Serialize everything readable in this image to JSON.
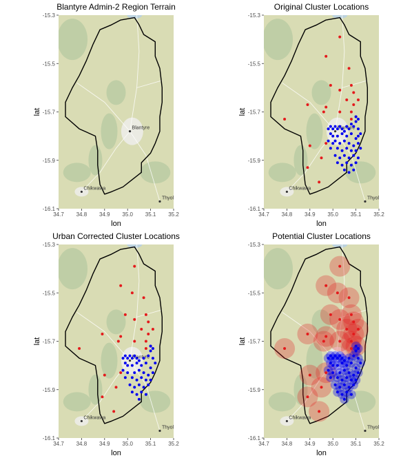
{
  "chart_data": [
    {
      "type": "scatter",
      "title": "Blantyre Admin-2 Region Terrain",
      "xlabel": "lon",
      "ylabel": "lat",
      "xlim": [
        34.7,
        35.2
      ],
      "ylim": [
        -16.1,
        -15.3
      ],
      "xticks": [
        "34.7",
        "34.8",
        "34.9",
        "35.0",
        "35.1",
        "35.2"
      ],
      "yticks": [
        "-15.3",
        "-15.5",
        "-15.7",
        "-15.9",
        "-16.1"
      ],
      "basemap_labels": [
        "Blantyre",
        "Chikwawa",
        "Thyolo"
      ],
      "show_blantyre_label": true,
      "series": []
    },
    {
      "type": "scatter",
      "title": "Original Cluster Locations",
      "xlabel": "lon",
      "ylabel": "lat",
      "xlim": [
        34.7,
        35.2
      ],
      "ylim": [
        -16.1,
        -15.3
      ],
      "xticks": [
        "34.7",
        "34.8",
        "34.9",
        "35.0",
        "35.1",
        "35.2"
      ],
      "yticks": [
        "-15.3",
        "-15.5",
        "-15.7",
        "-15.9",
        "-16.1"
      ],
      "basemap_labels": [
        "Blantyre",
        "Chikwawa",
        "Thyolo"
      ],
      "show_blantyre_label": true,
      "series": [
        {
          "color": "#e41a1c",
          "points": [
            [
              35.03,
              -15.39
            ],
            [
              34.97,
              -15.47
            ],
            [
              35.07,
              -15.52
            ],
            [
              34.99,
              -15.59
            ],
            [
              35.03,
              -15.61
            ],
            [
              35.08,
              -15.59
            ],
            [
              35.09,
              -15.62
            ],
            [
              35.06,
              -15.65
            ],
            [
              35.09,
              -15.67
            ],
            [
              35.11,
              -15.65
            ],
            [
              34.97,
              -15.68
            ],
            [
              35.03,
              -15.7
            ],
            [
              34.96,
              -15.7
            ],
            [
              35.08,
              -15.7
            ],
            [
              35.1,
              -15.72
            ],
            [
              34.79,
              -15.73
            ],
            [
              34.89,
              -15.67
            ],
            [
              35.08,
              -15.73
            ],
            [
              34.9,
              -15.84
            ],
            [
              34.97,
              -15.83
            ],
            [
              34.95,
              -15.89
            ],
            [
              34.89,
              -15.93
            ],
            [
              34.94,
              -15.99
            ]
          ]
        },
        {
          "color": "#0000ee",
          "points": [
            [
              34.98,
              -15.77
            ],
            [
              34.99,
              -15.76
            ],
            [
              35.0,
              -15.77
            ],
            [
              35.01,
              -15.76
            ],
            [
              35.02,
              -15.77
            ],
            [
              35.03,
              -15.76
            ],
            [
              35.04,
              -15.77
            ],
            [
              35.05,
              -15.78
            ],
            [
              35.06,
              -15.76
            ],
            [
              35.07,
              -15.77
            ],
            [
              35.08,
              -15.75
            ],
            [
              35.09,
              -15.76
            ],
            [
              35.1,
              -15.74
            ],
            [
              35.11,
              -15.77
            ],
            [
              34.99,
              -15.79
            ],
            [
              35.0,
              -15.8
            ],
            [
              35.02,
              -15.8
            ],
            [
              35.04,
              -15.79
            ],
            [
              35.06,
              -15.8
            ],
            [
              35.08,
              -15.79
            ],
            [
              35.1,
              -15.81
            ],
            [
              35.11,
              -15.8
            ],
            [
              34.98,
              -15.82
            ],
            [
              35.0,
              -15.83
            ],
            [
              35.01,
              -15.82
            ],
            [
              35.03,
              -15.83
            ],
            [
              35.05,
              -15.82
            ],
            [
              35.07,
              -15.83
            ],
            [
              35.09,
              -15.84
            ],
            [
              35.11,
              -15.83
            ],
            [
              34.99,
              -15.85
            ],
            [
              35.02,
              -15.85
            ],
            [
              35.04,
              -15.86
            ],
            [
              35.06,
              -15.85
            ],
            [
              35.08,
              -15.86
            ],
            [
              35.1,
              -15.86
            ],
            [
              35.12,
              -15.85
            ],
            [
              35.01,
              -15.88
            ],
            [
              35.03,
              -15.89
            ],
            [
              35.05,
              -15.88
            ],
            [
              35.07,
              -15.89
            ],
            [
              35.09,
              -15.88
            ],
            [
              35.11,
              -15.89
            ],
            [
              35.02,
              -15.91
            ],
            [
              35.04,
              -15.92
            ],
            [
              35.06,
              -15.91
            ],
            [
              35.08,
              -15.92
            ],
            [
              35.1,
              -15.91
            ],
            [
              35.05,
              -15.94
            ],
            [
              35.07,
              -15.95
            ],
            [
              35.09,
              -15.94
            ],
            [
              35.1,
              -15.72
            ],
            [
              35.11,
              -15.73
            ],
            [
              35.12,
              -15.79
            ]
          ]
        }
      ]
    },
    {
      "type": "scatter",
      "title": "Urban Corrected Cluster Locations",
      "xlabel": "lon",
      "ylabel": "lat",
      "xlim": [
        34.7,
        35.2
      ],
      "ylim": [
        -16.1,
        -15.3
      ],
      "xticks": [
        "34.7",
        "34.8",
        "34.9",
        "35.0",
        "35.1",
        "35.2"
      ],
      "yticks": [
        "-15.3",
        "-15.5",
        "-15.7",
        "-15.9",
        "-16.1"
      ],
      "basemap_labels": [
        "Blantyre",
        "Chikwawa",
        "Thyolo"
      ],
      "show_blantyre_label": true,
      "series": [
        {
          "color": "#e41a1c",
          "points": [
            [
              35.03,
              -15.39
            ],
            [
              34.97,
              -15.47
            ],
            [
              35.02,
              -15.5
            ],
            [
              35.07,
              -15.52
            ],
            [
              34.99,
              -15.59
            ],
            [
              35.03,
              -15.61
            ],
            [
              35.08,
              -15.59
            ],
            [
              35.09,
              -15.62
            ],
            [
              35.06,
              -15.65
            ],
            [
              35.09,
              -15.67
            ],
            [
              35.11,
              -15.65
            ],
            [
              34.97,
              -15.68
            ],
            [
              35.03,
              -15.7
            ],
            [
              34.96,
              -15.7
            ],
            [
              35.08,
              -15.7
            ],
            [
              35.1,
              -15.72
            ],
            [
              34.79,
              -15.73
            ],
            [
              34.89,
              -15.67
            ],
            [
              35.08,
              -15.73
            ],
            [
              34.9,
              -15.84
            ],
            [
              34.97,
              -15.83
            ],
            [
              34.95,
              -15.89
            ],
            [
              34.89,
              -15.93
            ],
            [
              34.94,
              -15.99
            ]
          ]
        },
        {
          "color": "#0000ee",
          "points": [
            [
              34.98,
              -15.77
            ],
            [
              34.99,
              -15.76
            ],
            [
              35.0,
              -15.77
            ],
            [
              35.01,
              -15.76
            ],
            [
              35.02,
              -15.77
            ],
            [
              35.03,
              -15.76
            ],
            [
              35.04,
              -15.77
            ],
            [
              35.05,
              -15.78
            ],
            [
              35.07,
              -15.77
            ],
            [
              35.09,
              -15.76
            ],
            [
              35.1,
              -15.74
            ],
            [
              35.11,
              -15.77
            ],
            [
              34.99,
              -15.79
            ],
            [
              35.0,
              -15.8
            ],
            [
              35.02,
              -15.8
            ],
            [
              35.04,
              -15.79
            ],
            [
              35.06,
              -15.8
            ],
            [
              35.08,
              -15.79
            ],
            [
              35.1,
              -15.81
            ],
            [
              34.98,
              -15.82
            ],
            [
              35.0,
              -15.83
            ],
            [
              35.03,
              -15.83
            ],
            [
              35.05,
              -15.82
            ],
            [
              35.07,
              -15.83
            ],
            [
              35.09,
              -15.84
            ],
            [
              35.11,
              -15.83
            ],
            [
              34.99,
              -15.85
            ],
            [
              35.02,
              -15.85
            ],
            [
              35.04,
              -15.86
            ],
            [
              35.06,
              -15.85
            ],
            [
              35.08,
              -15.86
            ],
            [
              35.1,
              -15.86
            ],
            [
              35.01,
              -15.88
            ],
            [
              35.03,
              -15.89
            ],
            [
              35.05,
              -15.88
            ],
            [
              35.07,
              -15.89
            ],
            [
              35.09,
              -15.88
            ],
            [
              35.02,
              -15.91
            ],
            [
              35.04,
              -15.92
            ],
            [
              35.06,
              -15.91
            ],
            [
              35.08,
              -15.92
            ],
            [
              35.05,
              -15.94
            ],
            [
              35.1,
              -15.72
            ],
            [
              35.11,
              -15.73
            ],
            [
              35.12,
              -15.79
            ]
          ]
        }
      ]
    },
    {
      "type": "scatter",
      "title": "Potential Cluster Locations",
      "xlabel": "lon",
      "ylabel": "lat",
      "xlim": [
        34.7,
        35.2
      ],
      "ylim": [
        -16.1,
        -15.3
      ],
      "xticks": [
        "34.7",
        "34.8",
        "34.9",
        "35.0",
        "35.1",
        "35.2"
      ],
      "yticks": [
        "-15.3",
        "-15.5",
        "-15.7",
        "-15.9",
        "-16.1"
      ],
      "basemap_labels": [
        "Chikwawa",
        "Thyolo"
      ],
      "show_blantyre_label": false,
      "buffers": {
        "urban_radius_deg": 0.02,
        "rural_radius_deg": 0.045
      },
      "series": [
        {
          "color": "#e41a1c",
          "points": [
            [
              35.03,
              -15.39
            ],
            [
              34.97,
              -15.47
            ],
            [
              35.02,
              -15.5
            ],
            [
              35.07,
              -15.52
            ],
            [
              34.99,
              -15.59
            ],
            [
              35.03,
              -15.61
            ],
            [
              35.08,
              -15.59
            ],
            [
              35.09,
              -15.62
            ],
            [
              35.06,
              -15.65
            ],
            [
              35.09,
              -15.67
            ],
            [
              35.11,
              -15.65
            ],
            [
              34.97,
              -15.68
            ],
            [
              35.03,
              -15.7
            ],
            [
              34.96,
              -15.7
            ],
            [
              35.08,
              -15.7
            ],
            [
              35.1,
              -15.72
            ],
            [
              34.79,
              -15.73
            ],
            [
              34.89,
              -15.67
            ],
            [
              35.08,
              -15.73
            ],
            [
              34.9,
              -15.84
            ],
            [
              34.97,
              -15.83
            ],
            [
              34.95,
              -15.89
            ],
            [
              34.89,
              -15.93
            ],
            [
              34.94,
              -15.99
            ]
          ]
        },
        {
          "color": "#0000ee",
          "points": [
            [
              34.98,
              -15.77
            ],
            [
              34.99,
              -15.76
            ],
            [
              35.0,
              -15.77
            ],
            [
              35.01,
              -15.76
            ],
            [
              35.02,
              -15.77
            ],
            [
              35.03,
              -15.76
            ],
            [
              35.04,
              -15.77
            ],
            [
              35.05,
              -15.78
            ],
            [
              35.07,
              -15.77
            ],
            [
              35.09,
              -15.76
            ],
            [
              35.1,
              -15.74
            ],
            [
              35.11,
              -15.77
            ],
            [
              34.99,
              -15.79
            ],
            [
              35.0,
              -15.8
            ],
            [
              35.02,
              -15.8
            ],
            [
              35.04,
              -15.79
            ],
            [
              35.06,
              -15.8
            ],
            [
              35.08,
              -15.79
            ],
            [
              35.1,
              -15.81
            ],
            [
              34.98,
              -15.82
            ],
            [
              35.0,
              -15.83
            ],
            [
              35.03,
              -15.83
            ],
            [
              35.05,
              -15.82
            ],
            [
              35.07,
              -15.83
            ],
            [
              35.09,
              -15.84
            ],
            [
              35.11,
              -15.83
            ],
            [
              34.99,
              -15.85
            ],
            [
              35.02,
              -15.85
            ],
            [
              35.04,
              -15.86
            ],
            [
              35.06,
              -15.85
            ],
            [
              35.08,
              -15.86
            ],
            [
              35.1,
              -15.86
            ],
            [
              35.01,
              -15.88
            ],
            [
              35.03,
              -15.89
            ],
            [
              35.05,
              -15.88
            ],
            [
              35.07,
              -15.89
            ],
            [
              35.09,
              -15.88
            ],
            [
              35.02,
              -15.91
            ],
            [
              35.04,
              -15.92
            ],
            [
              35.06,
              -15.91
            ],
            [
              35.08,
              -15.92
            ],
            [
              35.05,
              -15.94
            ],
            [
              35.1,
              -15.72
            ],
            [
              35.11,
              -15.73
            ],
            [
              35.12,
              -15.79
            ]
          ]
        }
      ]
    }
  ],
  "district_boundary": [
    [
      34.88,
      -15.36
    ],
    [
      34.93,
      -15.34
    ],
    [
      34.97,
      -15.32
    ],
    [
      35.03,
      -15.31
    ],
    [
      35.05,
      -15.34
    ],
    [
      35.07,
      -15.38
    ],
    [
      35.12,
      -15.41
    ],
    [
      35.12,
      -15.47
    ],
    [
      35.14,
      -15.52
    ],
    [
      35.15,
      -15.6
    ],
    [
      35.15,
      -15.66
    ],
    [
      35.14,
      -15.72
    ],
    [
      35.14,
      -15.78
    ],
    [
      35.12,
      -15.83
    ],
    [
      35.1,
      -15.87
    ],
    [
      35.06,
      -15.91
    ],
    [
      35.06,
      -15.95
    ],
    [
      35.02,
      -15.98
    ],
    [
      34.98,
      -16.01
    ],
    [
      34.93,
      -16.03
    ],
    [
      34.9,
      -16.04
    ],
    [
      34.88,
      -16.0
    ],
    [
      34.87,
      -15.92
    ],
    [
      34.87,
      -15.86
    ],
    [
      34.86,
      -15.8
    ],
    [
      34.79,
      -15.77
    ],
    [
      34.73,
      -15.72
    ],
    [
      34.73,
      -15.66
    ],
    [
      34.76,
      -15.6
    ],
    [
      34.79,
      -15.55
    ],
    [
      34.82,
      -15.49
    ],
    [
      34.85,
      -15.42
    ]
  ],
  "places": {
    "Blantyre": [
      35.01,
      -15.78
    ],
    "Chikwawa": [
      34.8,
      -16.03
    ],
    "Thyolo": [
      35.14,
      -16.07
    ]
  },
  "colors": {
    "rural": "#e41a1c",
    "urban": "#0000ee",
    "terrain": "#d9dcb4",
    "forest": "#a9c29a",
    "urban_area": "#ecece8",
    "water": "#bcd2de"
  }
}
